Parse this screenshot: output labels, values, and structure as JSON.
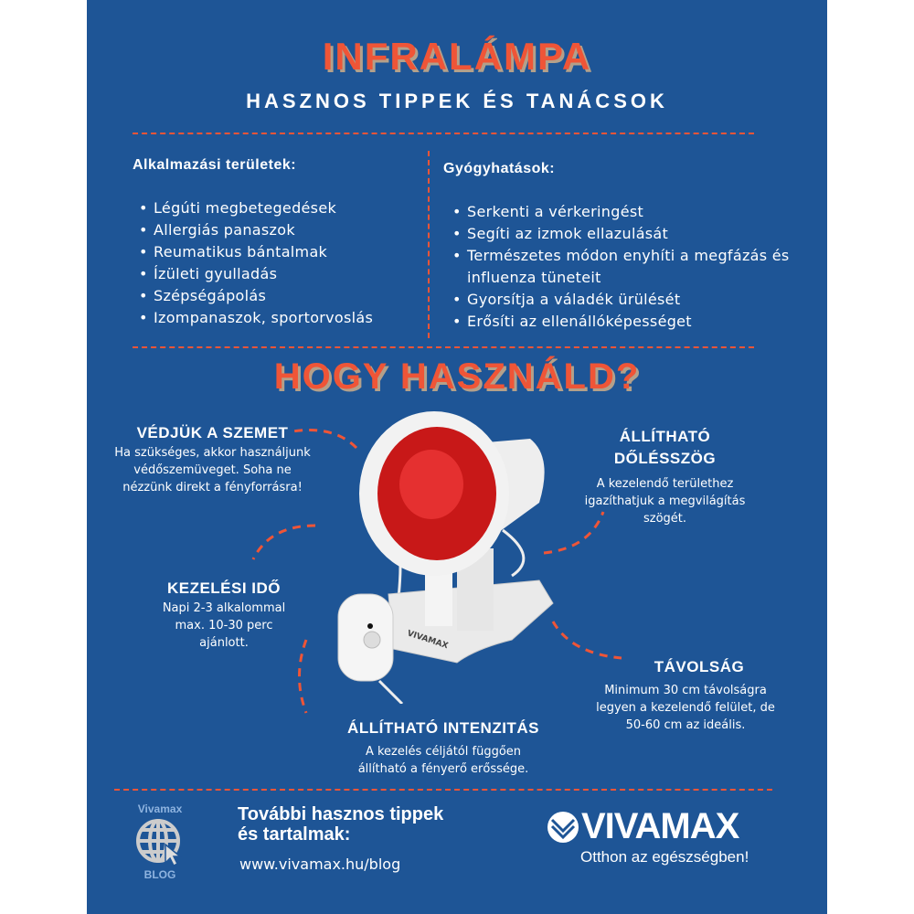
{
  "header": {
    "title": "INFRALÁMPA",
    "subtitle": "HASZNOS TIPPEK ÉS TANÁCSOK"
  },
  "colors": {
    "background": "#1e5596",
    "accent": "#ef5537",
    "text": "#ffffff"
  },
  "applications": {
    "heading": "Alkalmazási területek:",
    "items": [
      "Légúti megbetegedések",
      "Allergiás panaszok",
      "Reumatikus bántalmak",
      "Ízületi gyulladás",
      "Szépségápolás",
      "Izompanaszok, sportorvoslás"
    ]
  },
  "effects": {
    "heading": "Gyógyhatások:",
    "items": [
      "Serkenti a vérkeringést",
      "Segíti az izmok ellazulását",
      "Természetes módon enyhíti a megfázás és influenza tüneteit",
      "Gyorsítja a váladék ürülését",
      "Erősíti az ellenállóképességet"
    ]
  },
  "usage": {
    "title": "HOGY HASZNÁLD?",
    "eyes": {
      "heading": "VÉDJÜK A SZEMET",
      "text": "Ha szükséges, akkor használjunk védőszemüveget. Soha ne nézzünk direkt a fényforrásra!"
    },
    "angle": {
      "heading": "ÁLLÍTHATÓ DŐLÉSSZÖG",
      "text": "A kezelendő területhez igazíthatjuk a megvilágítás szögét."
    },
    "time": {
      "heading": "KEZELÉSI IDŐ",
      "text": "Napi 2-3 alkalommal max. 10-30 perc ajánlott."
    },
    "distance": {
      "heading": "TÁVOLSÁG",
      "text": "Minimum 30 cm távolságra legyen a kezelendő felület, de 50-60 cm az ideális."
    },
    "intensity": {
      "heading": "ÁLLÍTHATÓ INTENZITÁS",
      "text": "A kezelés céljától függően állítható a fényerő erőssége."
    }
  },
  "product_label": "VIVAMAX",
  "footer": {
    "blog_top": "Vivamax",
    "blog_bottom": "BLOG",
    "cta": "További hasznos tippek és tartalmak:",
    "url": "www.vivamax.hu/blog",
    "brand": "VIVAMAX",
    "slogan": "Otthon az egészségben!"
  }
}
